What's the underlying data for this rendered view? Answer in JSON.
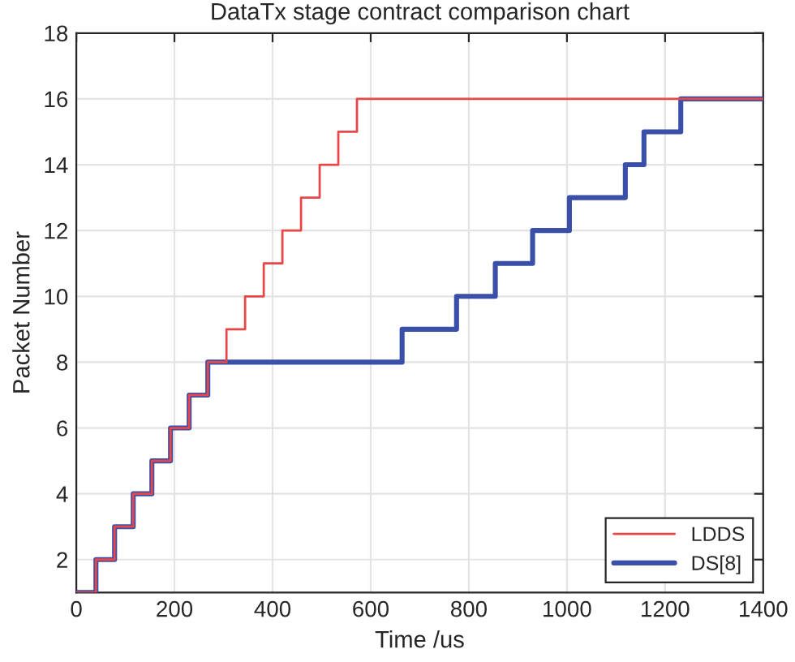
{
  "chart_data": {
    "type": "step",
    "title": "DataTx stage contract comparison chart",
    "xlabel": "Time /us",
    "ylabel": "Packet Number",
    "series": [
      {
        "name": "LDDS",
        "color": "#e8474a",
        "x": [
          0,
          40,
          78,
          116,
          154,
          192,
          230,
          268,
          306,
          344,
          382,
          420,
          458,
          496,
          534,
          572,
          1400
        ],
        "values": [
          1,
          2,
          3,
          4,
          5,
          6,
          7,
          8,
          9,
          10,
          11,
          12,
          13,
          14,
          15,
          16,
          16
        ]
      },
      {
        "name": "DS[8]",
        "color": "#3a4fa8",
        "x": [
          0,
          40,
          78,
          116,
          154,
          192,
          230,
          268,
          664,
          775,
          854,
          930,
          1005,
          1119,
          1157,
          1232,
          1400
        ],
        "values": [
          1,
          2,
          3,
          4,
          5,
          6,
          7,
          8,
          9,
          10,
          11,
          12,
          13,
          14,
          15,
          16,
          16
        ]
      }
    ],
    "xlim": [
      0,
      1400
    ],
    "xticks": [
      0,
      200,
      400,
      600,
      800,
      1000,
      1200,
      1400
    ],
    "ylim": [
      1,
      18
    ],
    "yticks": [
      2,
      4,
      6,
      8,
      10,
      12,
      14,
      16,
      18
    ],
    "grid": true,
    "legend": "bottom right"
  }
}
